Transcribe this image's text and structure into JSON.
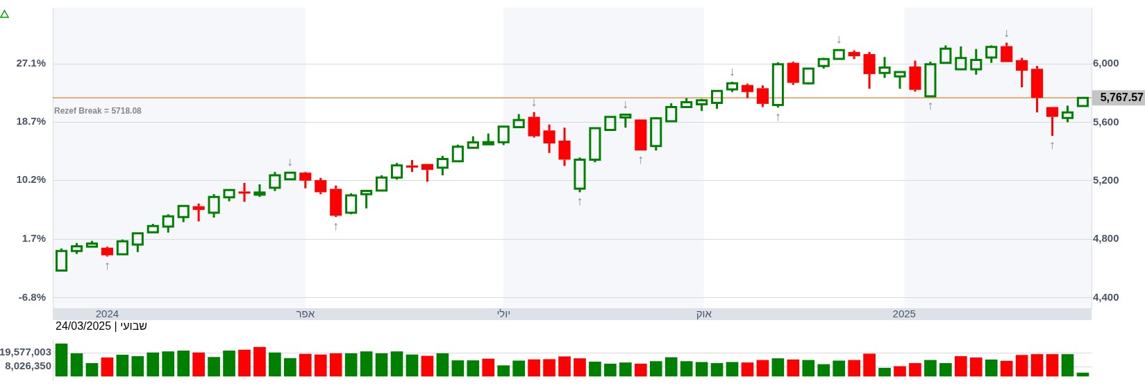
{
  "chart_data": [
    {
      "type": "candlestick",
      "x": [
        "2023-12-11",
        "2023-12-18",
        "2023-12-25",
        "2024-01-01",
        "2024-01-08",
        "2024-01-15",
        "2024-01-22",
        "2024-01-29",
        "2024-02-05",
        "2024-02-12",
        "2024-02-19",
        "2024-02-26",
        "2024-03-04",
        "2024-03-11",
        "2024-03-18",
        "2024-03-25",
        "2024-04-01",
        "2024-04-08",
        "2024-04-15",
        "2024-04-22",
        "2024-04-29",
        "2024-05-06",
        "2024-05-13",
        "2024-05-20",
        "2024-05-27",
        "2024-06-03",
        "2024-06-10",
        "2024-06-17",
        "2024-06-24",
        "2024-07-01",
        "2024-07-08",
        "2024-07-15",
        "2024-07-22",
        "2024-07-29",
        "2024-08-05",
        "2024-08-12",
        "2024-08-19",
        "2024-08-26",
        "2024-09-02",
        "2024-09-09",
        "2024-09-16",
        "2024-09-23",
        "2024-09-30",
        "2024-10-07",
        "2024-10-14",
        "2024-10-21",
        "2024-10-28",
        "2024-11-04",
        "2024-11-11",
        "2024-11-18",
        "2024-11-25",
        "2024-12-02",
        "2024-12-09",
        "2024-12-16",
        "2024-12-23",
        "2024-12-30",
        "2025-01-06",
        "2025-01-13",
        "2025-01-20",
        "2025-01-27",
        "2025-02-03",
        "2025-02-10",
        "2025-02-17",
        "2025-02-24",
        "2025-03-03",
        "2025-03-10",
        "2025-03-17",
        "2025-03-24"
      ],
      "ohlc": [
        [
          4585,
          4736,
          4585,
          4718
        ],
        [
          4718,
          4773,
          4699,
          4751
        ],
        [
          4748,
          4788,
          4748,
          4770
        ],
        [
          4741,
          4748,
          4681,
          4689
        ],
        [
          4696,
          4797,
          4696,
          4785
        ],
        [
          4763,
          4840,
          4711,
          4840
        ],
        [
          4847,
          4904,
          4847,
          4889
        ],
        [
          4886,
          4970,
          4844,
          4956
        ],
        [
          4951,
          5027,
          4916,
          5027
        ],
        [
          5025,
          5044,
          4921,
          5000
        ],
        [
          4981,
          5108,
          4948,
          5089
        ],
        [
          5086,
          5136,
          5059,
          5136
        ],
        [
          5126,
          5185,
          5056,
          5119
        ],
        [
          5104,
          5175,
          5089,
          5119
        ],
        [
          5151,
          5259,
          5129,
          5237
        ],
        [
          5210,
          5259,
          5204,
          5255
        ],
        [
          5255,
          5259,
          5148,
          5200
        ],
        [
          5204,
          5219,
          5108,
          5121
        ],
        [
          5144,
          5167,
          4951,
          4960
        ],
        [
          4981,
          5114,
          4970,
          5099
        ],
        [
          5108,
          5136,
          5010,
          5130
        ],
        [
          5133,
          5237,
          5133,
          5222
        ],
        [
          5222,
          5321,
          5207,
          5304
        ],
        [
          5304,
          5341,
          5259,
          5296
        ],
        [
          5314,
          5314,
          5193,
          5274
        ],
        [
          5289,
          5370,
          5237,
          5348
        ],
        [
          5333,
          5447,
          5330,
          5433
        ],
        [
          5425,
          5504,
          5425,
          5462
        ],
        [
          5449,
          5523,
          5449,
          5464
        ],
        [
          5464,
          5570,
          5444,
          5570
        ],
        [
          5567,
          5656,
          5567,
          5615
        ],
        [
          5637,
          5670,
          5496,
          5504
        ],
        [
          5544,
          5585,
          5390,
          5455
        ],
        [
          5474,
          5563,
          5301,
          5344
        ],
        [
          5145,
          5359,
          5121,
          5344
        ],
        [
          5344,
          5559,
          5326,
          5559
        ],
        [
          5548,
          5637,
          5548,
          5637
        ],
        [
          5633,
          5652,
          5563,
          5652
        ],
        [
          5619,
          5619,
          5407,
          5407
        ],
        [
          5437,
          5633,
          5407,
          5627
        ],
        [
          5607,
          5730,
          5607,
          5704
        ],
        [
          5704,
          5766,
          5699,
          5738
        ],
        [
          5723,
          5760,
          5677,
          5751
        ],
        [
          5733,
          5819,
          5692,
          5815
        ],
        [
          5825,
          5877,
          5807,
          5867
        ],
        [
          5855,
          5864,
          5766,
          5807
        ],
        [
          5833,
          5852,
          5704,
          5726
        ],
        [
          5719,
          6010,
          5701,
          5997
        ],
        [
          6007,
          6015,
          5856,
          5870
        ],
        [
          5867,
          5967,
          5859,
          5967
        ],
        [
          5985,
          6041,
          5967,
          6033
        ],
        [
          6034,
          6099,
          6034,
          6095
        ],
        [
          6081,
          6092,
          6033,
          6052
        ],
        [
          6067,
          6081,
          5830,
          5930
        ],
        [
          5938,
          6047,
          5904,
          5975
        ],
        [
          5914,
          5944,
          5830,
          5944
        ],
        [
          5982,
          6022,
          5810,
          5822
        ],
        [
          5778,
          6015,
          5778,
          5997
        ],
        [
          6007,
          6126,
          6007,
          6104
        ],
        [
          5963,
          6119,
          5963,
          6040
        ],
        [
          5963,
          6101,
          5926,
          6027
        ],
        [
          6044,
          6126,
          6007,
          6116
        ],
        [
          6121,
          6145,
          6012,
          6012
        ],
        [
          6025,
          6041,
          5840,
          5953
        ],
        [
          5966,
          5985,
          5667,
          5767
        ],
        [
          5704,
          5704,
          5507,
          5637
        ],
        [
          5630,
          5714,
          5600,
          5667
        ],
        [
          5711,
          5773,
          5711,
          5767.57
        ]
      ],
      "colors": [
        "#008000",
        "#008000",
        "#008000",
        "#ff0000",
        "#008000",
        "#008000",
        "#008000",
        "#008000",
        "#008000",
        "#ff0000",
        "#008000",
        "#008000",
        "#ff0000",
        "#008000",
        "#008000",
        "#008000",
        "#ff0000",
        "#ff0000",
        "#ff0000",
        "#008000",
        "#008000",
        "#008000",
        "#008000",
        "#ff0000",
        "#ff0000",
        "#008000",
        "#008000",
        "#008000",
        "#008000",
        "#008000",
        "#008000",
        "#ff0000",
        "#ff0000",
        "#ff0000",
        "#008000",
        "#008000",
        "#008000",
        "#008000",
        "#ff0000",
        "#008000",
        "#008000",
        "#008000",
        "#008000",
        "#008000",
        "#008000",
        "#ff0000",
        "#ff0000",
        "#008000",
        "#ff0000",
        "#008000",
        "#008000",
        "#008000",
        "#ff0000",
        "#ff0000",
        "#008000",
        "#008000",
        "#ff0000",
        "#008000",
        "#008000",
        "#008000",
        "#008000",
        "#008000",
        "#ff0000",
        "#ff0000",
        "#ff0000",
        "#ff0000",
        "#008000",
        "#008000"
      ],
      "xlim": [
        "2023-12-07",
        "2025-03-28"
      ],
      "xticks": [
        {
          "value": "2024-01-01",
          "label": "2024"
        },
        {
          "value": "2024-04-01",
          "label": "אפר"
        },
        {
          "value": "2024-07-01",
          "label": "יולי"
        },
        {
          "value": "2024-10-01",
          "label": "אוק"
        },
        {
          "value": "2025-01-01",
          "label": "2025"
        }
      ],
      "y2lim": [
        -8.36,
        35.26
      ],
      "y2ticks": [
        {
          "value": -6.8,
          "label": "-6.8%"
        },
        {
          "value": 1.7,
          "label": "1.7%"
        },
        {
          "value": 10.2,
          "label": "10.2%"
        },
        {
          "value": 18.7,
          "label": "18.7%"
        },
        {
          "value": 27.1,
          "label": "27.1%"
        }
      ],
      "ylim": [
        4326,
        6385
      ],
      "yticks": [
        {
          "value": 4400,
          "label": "4,400"
        },
        {
          "value": 4800,
          "label": "4,800"
        },
        {
          "value": 5200,
          "label": "5,200"
        },
        {
          "value": 5600,
          "label": "5,600"
        },
        {
          "value": 6000,
          "label": "6,000"
        }
      ],
      "grid": "y",
      "bands": [
        {
          "axis": "x",
          "from": "2023-12-07",
          "to": "2024-04-01",
          "color": "#f5f7fa"
        },
        {
          "axis": "x",
          "from": "2024-07-01",
          "to": "2024-10-01",
          "color": "#f5f7fa"
        },
        {
          "axis": "x",
          "from": "2025-01-01",
          "to": "2025-03-28",
          "color": "#f5f7fa"
        }
      ],
      "ref_lines": [
        {
          "axis": "y",
          "value": 5767.57,
          "label": "5,767.57",
          "color": "#cc6600"
        }
      ],
      "annotations": [
        "Rezef Break = 5718.08",
        {
          "text": "↑",
          "x": "2024-01-01",
          "y": 4681
        },
        {
          "text": "↓",
          "x": "2024-03-25",
          "y": 5259
        },
        {
          "text": "↑",
          "x": "2024-04-15",
          "y": 4951
        },
        {
          "text": "↓",
          "x": "2024-07-15",
          "y": 5670
        },
        {
          "text": "↑",
          "x": "2024-08-05",
          "y": 5121
        },
        {
          "text": "↓",
          "x": "2024-08-26",
          "y": 5652
        },
        {
          "text": "↑",
          "x": "2024-09-02",
          "y": 5407
        },
        {
          "text": "↓",
          "x": "2024-10-14",
          "y": 5877
        },
        {
          "text": "↑",
          "x": "2024-11-04",
          "y": 5701
        },
        {
          "text": "↓",
          "x": "2024-12-02",
          "y": 6099
        },
        {
          "text": "↑",
          "x": "2025-01-13",
          "y": 5778
        },
        {
          "text": "↓",
          "x": "2025-02-17",
          "y": 6145
        },
        {
          "text": "↑",
          "x": "2025-03-10",
          "y": 5507
        }
      ]
    },
    {
      "type": "bar",
      "x": [
        "2023-12-11",
        "2023-12-18",
        "2023-12-25",
        "2024-01-01",
        "2024-01-08",
        "2024-01-15",
        "2024-01-22",
        "2024-01-29",
        "2024-02-05",
        "2024-02-12",
        "2024-02-19",
        "2024-02-26",
        "2024-03-04",
        "2024-03-11",
        "2024-03-18",
        "2024-03-25",
        "2024-04-01",
        "2024-04-08",
        "2024-04-15",
        "2024-04-22",
        "2024-04-29",
        "2024-05-06",
        "2024-05-13",
        "2024-05-20",
        "2024-05-27",
        "2024-06-03",
        "2024-06-10",
        "2024-06-17",
        "2024-06-24",
        "2024-07-01",
        "2024-07-08",
        "2024-07-15",
        "2024-07-22",
        "2024-07-29",
        "2024-08-05",
        "2024-08-12",
        "2024-08-19",
        "2024-08-26",
        "2024-09-02",
        "2024-09-09",
        "2024-09-16",
        "2024-09-23",
        "2024-09-30",
        "2024-10-07",
        "2024-10-14",
        "2024-10-21",
        "2024-10-28",
        "2024-11-04",
        "2024-11-11",
        "2024-11-18",
        "2024-11-25",
        "2024-12-02",
        "2024-12-09",
        "2024-12-16",
        "2024-12-23",
        "2024-12-30",
        "2025-01-06",
        "2025-01-13",
        "2025-01-20",
        "2025-01-27",
        "2025-02-03",
        "2025-02-10",
        "2025-02-17",
        "2025-02-24",
        "2025-03-03",
        "2025-03-10",
        "2025-03-17",
        "2025-03-24"
      ],
      "values": [
        27200000,
        19000000,
        10800000,
        15500000,
        17800000,
        16600000,
        19700000,
        20600000,
        21300000,
        19700000,
        15900000,
        21300000,
        22000000,
        24300000,
        19700000,
        15000000,
        18500000,
        18000000,
        19000000,
        19000000,
        20600000,
        19000000,
        20600000,
        18000000,
        16900000,
        19000000,
        13100000,
        13100000,
        14500000,
        8900000,
        12900000,
        13900000,
        14100000,
        16400000,
        14800000,
        12000000,
        10300000,
        11300000,
        10300000,
        12400000,
        15700000,
        12400000,
        11700000,
        10800000,
        11700000,
        11300000,
        13400000,
        14800000,
        13800000,
        13400000,
        9900000,
        12900000,
        13400000,
        18700000,
        6800000,
        8200000,
        10800000,
        13400000,
        10800000,
        16600000,
        15500000,
        13800000,
        12700000,
        17600000,
        18300000,
        18300000,
        18300000,
        2800000
      ],
      "colors": [
        "#008000",
        "#008000",
        "#008000",
        "#ff0000",
        "#008000",
        "#008000",
        "#008000",
        "#008000",
        "#008000",
        "#ff0000",
        "#008000",
        "#008000",
        "#ff0000",
        "#ff0000",
        "#008000",
        "#008000",
        "#ff0000",
        "#ff0000",
        "#ff0000",
        "#008000",
        "#008000",
        "#008000",
        "#008000",
        "#008000",
        "#ff0000",
        "#008000",
        "#008000",
        "#008000",
        "#ff0000",
        "#008000",
        "#008000",
        "#ff0000",
        "#ff0000",
        "#ff0000",
        "#ff0000",
        "#008000",
        "#008000",
        "#008000",
        "#ff0000",
        "#008000",
        "#008000",
        "#008000",
        "#008000",
        "#008000",
        "#008000",
        "#ff0000",
        "#ff0000",
        "#008000",
        "#ff0000",
        "#008000",
        "#008000",
        "#008000",
        "#ff0000",
        "#ff0000",
        "#008000",
        "#ff0000",
        "#ff0000",
        "#008000",
        "#008000",
        "#ff0000",
        "#ff0000",
        "#008000",
        "#ff0000",
        "#ff0000",
        "#ff0000",
        "#ff0000",
        "#008000",
        "#008000"
      ],
      "xlim": [
        "2023-12-07",
        "2025-03-28"
      ],
      "ylim": [
        -3500000,
        30200000
      ],
      "yticks": [
        {
          "value": 8026350,
          "label": "8,026,350"
        },
        {
          "value": 19577003,
          "label": "19,577,003"
        }
      ],
      "grid": "y",
      "tick_labels": "y",
      "annotations": [
        "שבועי | 24/03/2025"
      ]
    }
  ]
}
